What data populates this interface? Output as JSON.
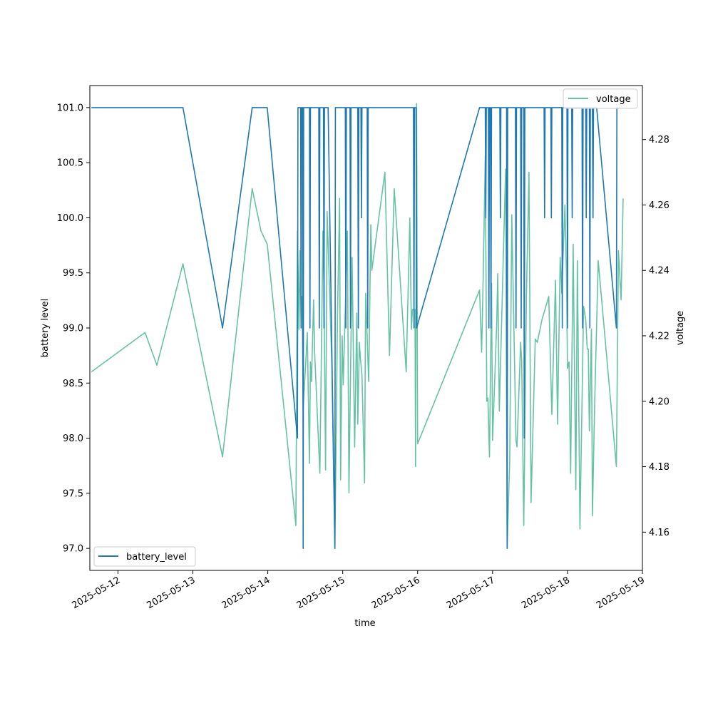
{
  "chart_data": {
    "type": "line",
    "xlabel": "time",
    "ylabel_left": "battery level",
    "ylabel_right": "voltage",
    "xlim": [
      "2025-05-11T15:00",
      "2025-05-19T00:00"
    ],
    "ylim_left": [
      96.8,
      101.2
    ],
    "ylim_right": [
      4.1483,
      4.2965
    ],
    "x_ticks": [
      "2025-05-12",
      "2025-05-13",
      "2025-05-14",
      "2025-05-15",
      "2025-05-16",
      "2025-05-17",
      "2025-05-18",
      "2025-05-19"
    ],
    "y_ticks_left": [
      "97.0",
      "97.5",
      "98.0",
      "98.5",
      "99.0",
      "99.5",
      "100.0",
      "100.5",
      "101.0"
    ],
    "y_ticks_right": [
      "4.16",
      "4.18",
      "4.20",
      "4.22",
      "4.24",
      "4.26",
      "4.28"
    ],
    "legend_left": {
      "label": "battery_level",
      "placement": "lower-left"
    },
    "legend_right": {
      "label": "voltage",
      "placement": "upper-right"
    },
    "grid": false,
    "series": [
      {
        "name": "battery_level",
        "axis": "left",
        "color": "#1f77b4",
        "points": [
          [
            "2025-05-11T15:30",
            101
          ],
          [
            "2025-05-12T20:50",
            101
          ],
          [
            "2025-05-13T09:30",
            99
          ],
          [
            "2025-05-13T19:00",
            101
          ],
          [
            "2025-05-13T23:50",
            101
          ],
          [
            "2025-05-14T09:30",
            98
          ],
          [
            "2025-05-14T09:40",
            101
          ],
          [
            "2025-05-14T10:30",
            101
          ],
          [
            "2025-05-14T10:40",
            99
          ],
          [
            "2025-05-14T10:50",
            101
          ],
          [
            "2025-05-14T11:10",
            101
          ],
          [
            "2025-05-14T11:20",
            97
          ],
          [
            "2025-05-14T11:30",
            101
          ],
          [
            "2025-05-14T13:20",
            101
          ],
          [
            "2025-05-14T13:30",
            99
          ],
          [
            "2025-05-14T13:40",
            101
          ],
          [
            "2025-05-14T16:20",
            101
          ],
          [
            "2025-05-14T16:30",
            99
          ],
          [
            "2025-05-14T16:40",
            101
          ],
          [
            "2025-05-14T17:50",
            101
          ],
          [
            "2025-05-14T18:00",
            99
          ],
          [
            "2025-05-14T18:10",
            101
          ],
          [
            "2025-05-14T19:20",
            101
          ],
          [
            "2025-05-14T21:30",
            97
          ],
          [
            "2025-05-14T21:40",
            101
          ],
          [
            "2025-05-15T00:50",
            101
          ],
          [
            "2025-05-15T01:00",
            99
          ],
          [
            "2025-05-15T01:10",
            101
          ],
          [
            "2025-05-15T02:20",
            101
          ],
          [
            "2025-05-15T02:30",
            99
          ],
          [
            "2025-05-15T02:40",
            101
          ],
          [
            "2025-05-15T04:50",
            101
          ],
          [
            "2025-05-15T05:00",
            99
          ],
          [
            "2025-05-15T05:10",
            101
          ],
          [
            "2025-05-15T05:50",
            101
          ],
          [
            "2025-05-15T06:00",
            100
          ],
          [
            "2025-05-15T06:10",
            101
          ],
          [
            "2025-05-15T07:50",
            101
          ],
          [
            "2025-05-15T08:00",
            99
          ],
          [
            "2025-05-15T08:10",
            101
          ],
          [
            "2025-05-15T22:40",
            101
          ],
          [
            "2025-05-15T22:50",
            99
          ],
          [
            "2025-05-15T23:00",
            101
          ],
          [
            "2025-05-15T23:30",
            101
          ],
          [
            "2025-05-15T23:40",
            99
          ],
          [
            "2025-05-16T19:50",
            101
          ],
          [
            "2025-05-16T21:40",
            101
          ],
          [
            "2025-05-16T21:50",
            100
          ],
          [
            "2025-05-16T22:00",
            101
          ],
          [
            "2025-05-16T22:40",
            101
          ],
          [
            "2025-05-16T22:50",
            99
          ],
          [
            "2025-05-16T23:00",
            101
          ],
          [
            "2025-05-16T23:20",
            101
          ],
          [
            "2025-05-16T23:30",
            99
          ],
          [
            "2025-05-16T23:40",
            101
          ],
          [
            "2025-05-17T02:20",
            101
          ],
          [
            "2025-05-17T02:30",
            100
          ],
          [
            "2025-05-17T02:40",
            101
          ],
          [
            "2025-05-17T04:30",
            101
          ],
          [
            "2025-05-17T04:40",
            97
          ],
          [
            "2025-05-17T04:50",
            101
          ],
          [
            "2025-05-17T07:20",
            101
          ],
          [
            "2025-05-17T07:30",
            99
          ],
          [
            "2025-05-17T07:40",
            101
          ],
          [
            "2025-05-17T09:00",
            101
          ],
          [
            "2025-05-17T09:10",
            99
          ],
          [
            "2025-05-17T09:20",
            101
          ],
          [
            "2025-05-17T10:00",
            101
          ],
          [
            "2025-05-17T10:10",
            98
          ],
          [
            "2025-05-17T10:20",
            101
          ],
          [
            "2025-05-17T16:30",
            101
          ],
          [
            "2025-05-17T16:40",
            100
          ],
          [
            "2025-05-17T16:50",
            101
          ],
          [
            "2025-05-17T18:40",
            101
          ],
          [
            "2025-05-17T18:50",
            100
          ],
          [
            "2025-05-17T19:00",
            101
          ],
          [
            "2025-05-17T22:10",
            101
          ],
          [
            "2025-05-17T22:20",
            99
          ],
          [
            "2025-05-17T22:30",
            101
          ],
          [
            "2025-05-17T23:50",
            101
          ],
          [
            "2025-05-18T00:00",
            99
          ],
          [
            "2025-05-18T00:10",
            101
          ],
          [
            "2025-05-18T01:20",
            101
          ],
          [
            "2025-05-18T01:30",
            100
          ],
          [
            "2025-05-18T01:40",
            101
          ],
          [
            "2025-05-18T04:40",
            101
          ],
          [
            "2025-05-18T04:50",
            99
          ],
          [
            "2025-05-18T05:00",
            101
          ],
          [
            "2025-05-18T05:50",
            101
          ],
          [
            "2025-05-18T06:00",
            100
          ],
          [
            "2025-05-18T06:10",
            101
          ],
          [
            "2025-05-18T07:00",
            101
          ],
          [
            "2025-05-18T07:10",
            99
          ],
          [
            "2025-05-18T07:20",
            101
          ],
          [
            "2025-05-18T08:00",
            101
          ],
          [
            "2025-05-18T08:10",
            100
          ],
          [
            "2025-05-18T08:20",
            101
          ],
          [
            "2025-05-18T09:20",
            101
          ],
          [
            "2025-05-18T15:40",
            99
          ],
          [
            "2025-05-18T15:50",
            101
          ],
          [
            "2025-05-18T16:50",
            101
          ]
        ]
      },
      {
        "name": "voltage",
        "axis": "right",
        "color": "#66c2a5",
        "points": [
          [
            "2025-05-11T15:30",
            4.209
          ],
          [
            "2025-05-12T08:40",
            4.221
          ],
          [
            "2025-05-12T12:30",
            4.211
          ],
          [
            "2025-05-12T20:50",
            4.242
          ],
          [
            "2025-05-13T09:30",
            4.183
          ],
          [
            "2025-05-13T19:00",
            4.265
          ],
          [
            "2025-05-13T21:50",
            4.252
          ],
          [
            "2025-05-13T23:50",
            4.248
          ],
          [
            "2025-05-14T09:00",
            4.162
          ],
          [
            "2025-05-14T09:30",
            4.252
          ],
          [
            "2025-05-14T10:00",
            4.222
          ],
          [
            "2025-05-14T10:20",
            4.246
          ],
          [
            "2025-05-14T10:40",
            4.225
          ],
          [
            "2025-05-14T11:00",
            4.232
          ],
          [
            "2025-05-14T11:20",
            4.198
          ],
          [
            "2025-05-14T12:00",
            4.209
          ],
          [
            "2025-05-14T12:40",
            4.221
          ],
          [
            "2025-05-14T13:20",
            4.181
          ],
          [
            "2025-05-14T13:40",
            4.212
          ],
          [
            "2025-05-14T14:00",
            4.206
          ],
          [
            "2025-05-14T14:40",
            4.231
          ],
          [
            "2025-05-14T15:00",
            4.215
          ],
          [
            "2025-05-14T16:40",
            4.178
          ],
          [
            "2025-05-14T17:40",
            4.252
          ],
          [
            "2025-05-14T18:00",
            4.235
          ],
          [
            "2025-05-14T18:30",
            4.179
          ],
          [
            "2025-05-14T19:00",
            4.258
          ],
          [
            "2025-05-14T20:30",
            4.212
          ],
          [
            "2025-05-14T21:30",
            4.155
          ],
          [
            "2025-05-14T22:20",
            4.227
          ],
          [
            "2025-05-14T23:00",
            4.262
          ],
          [
            "2025-05-14T23:20",
            4.176
          ],
          [
            "2025-05-14T23:50",
            4.22
          ],
          [
            "2025-05-15T00:10",
            4.205
          ],
          [
            "2025-05-15T01:30",
            4.252
          ],
          [
            "2025-05-15T02:00",
            4.172
          ],
          [
            "2025-05-15T03:00",
            4.244
          ],
          [
            "2025-05-15T03:50",
            4.186
          ],
          [
            "2025-05-15T04:30",
            4.227
          ],
          [
            "2025-05-15T04:50",
            4.193
          ],
          [
            "2025-05-15T05:20",
            4.218
          ],
          [
            "2025-05-15T05:40",
            4.213
          ],
          [
            "2025-05-15T06:10",
            4.208
          ],
          [
            "2025-05-15T07:00",
            4.175
          ],
          [
            "2025-05-15T07:20",
            4.233
          ],
          [
            "2025-05-15T08:20",
            4.206
          ],
          [
            "2025-05-15T09:00",
            4.254
          ],
          [
            "2025-05-15T09:20",
            4.24
          ],
          [
            "2025-05-15T13:30",
            4.27
          ],
          [
            "2025-05-15T15:00",
            4.214
          ],
          [
            "2025-05-15T16:30",
            4.265
          ],
          [
            "2025-05-15T20:20",
            4.209
          ],
          [
            "2025-05-15T21:30",
            4.256
          ],
          [
            "2025-05-15T22:00",
            4.222
          ],
          [
            "2025-05-15T22:20",
            4.228
          ],
          [
            "2025-05-15T23:10",
            4.228
          ],
          [
            "2025-05-15T23:20",
            4.18
          ],
          [
            "2025-05-15T23:40",
            4.291
          ],
          [
            "2025-05-16T00:00",
            4.187
          ],
          [
            "2025-05-16T19:50",
            4.234
          ],
          [
            "2025-05-16T20:30",
            4.215
          ],
          [
            "2025-05-16T21:00",
            4.238
          ],
          [
            "2025-05-16T21:40",
            4.275
          ],
          [
            "2025-05-16T22:10",
            4.2
          ],
          [
            "2025-05-16T22:30",
            4.201
          ],
          [
            "2025-05-16T23:00",
            4.183
          ],
          [
            "2025-05-16T23:40",
            4.236
          ],
          [
            "2025-05-17T00:00",
            4.188
          ],
          [
            "2025-05-17T01:20",
            4.224
          ],
          [
            "2025-05-17T01:40",
            4.239
          ],
          [
            "2025-05-17T02:10",
            4.197
          ],
          [
            "2025-05-17T04:10",
            4.271
          ],
          [
            "2025-05-17T04:40",
            4.155
          ],
          [
            "2025-05-17T05:30",
            4.182
          ],
          [
            "2025-05-17T06:10",
            4.257
          ],
          [
            "2025-05-17T07:30",
            4.188
          ],
          [
            "2025-05-17T07:50",
            4.186
          ],
          [
            "2025-05-17T09:00",
            4.218
          ],
          [
            "2025-05-17T09:20",
            4.212
          ],
          [
            "2025-05-17T10:00",
            4.162
          ],
          [
            "2025-05-17T10:50",
            4.232
          ],
          [
            "2025-05-17T11:40",
            4.27
          ],
          [
            "2025-05-17T12:20",
            4.169
          ],
          [
            "2025-05-17T13:40",
            4.219
          ],
          [
            "2025-05-17T14:20",
            4.218
          ],
          [
            "2025-05-17T15:50",
            4.225
          ],
          [
            "2025-05-17T18:00",
            4.232
          ],
          [
            "2025-05-17T19:00",
            4.196
          ],
          [
            "2025-05-17T20:10",
            4.237
          ],
          [
            "2025-05-17T20:50",
            4.193
          ],
          [
            "2025-05-17T21:40",
            4.244
          ],
          [
            "2025-05-17T22:10",
            4.233
          ],
          [
            "2025-05-17T23:10",
            4.26
          ],
          [
            "2025-05-17T23:40",
            4.239
          ],
          [
            "2025-05-18T00:00",
            4.21
          ],
          [
            "2025-05-18T00:30",
            4.212
          ],
          [
            "2025-05-18T01:00",
            4.178
          ],
          [
            "2025-05-18T01:50",
            4.248
          ],
          [
            "2025-05-18T02:40",
            4.173
          ],
          [
            "2025-05-18T03:10",
            4.243
          ],
          [
            "2025-05-18T04:00",
            4.161
          ],
          [
            "2025-05-18T05:10",
            4.229
          ],
          [
            "2025-05-18T05:50",
            4.225
          ],
          [
            "2025-05-18T06:20",
            4.216
          ],
          [
            "2025-05-18T06:40",
            4.216
          ],
          [
            "2025-05-18T07:00",
            4.191
          ],
          [
            "2025-05-18T07:40",
            4.222
          ],
          [
            "2025-05-18T08:00",
            4.165
          ],
          [
            "2025-05-18T08:40",
            4.198
          ],
          [
            "2025-05-18T09:50",
            4.243
          ],
          [
            "2025-05-18T15:40",
            4.18
          ],
          [
            "2025-05-18T16:20",
            4.246
          ],
          [
            "2025-05-18T17:10",
            4.231
          ],
          [
            "2025-05-18T17:50",
            4.262
          ]
        ]
      }
    ]
  }
}
